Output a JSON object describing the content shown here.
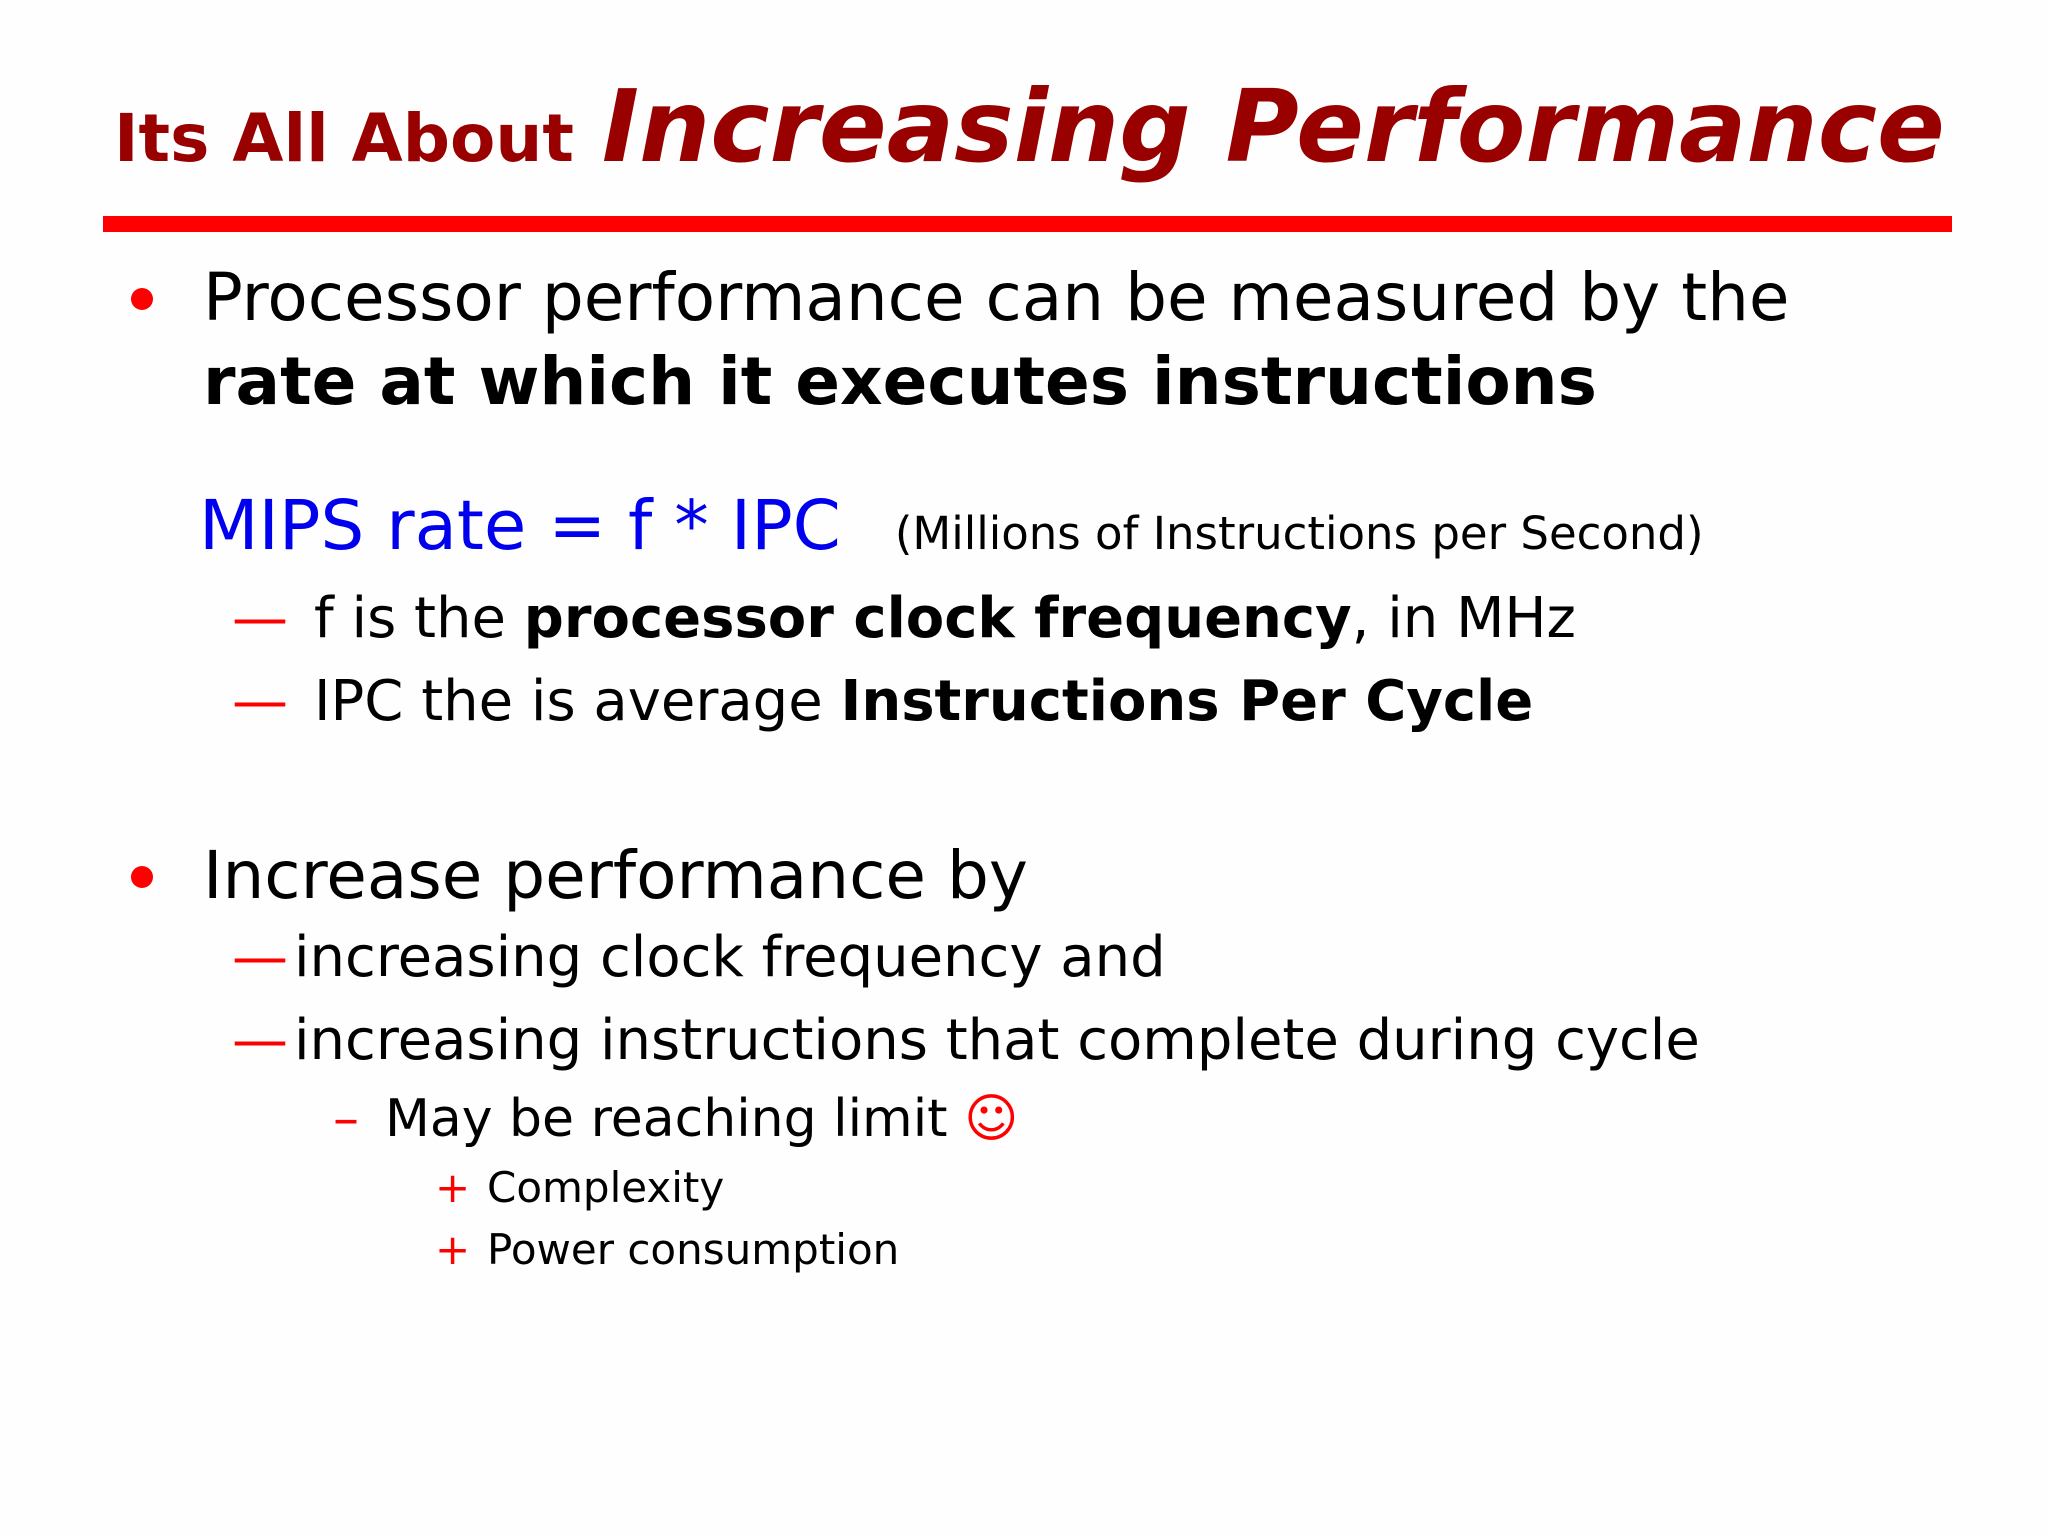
{
  "slide": {
    "title": {
      "prefix": "Its All About",
      "emphasis": "Increasing Performance"
    },
    "bullet1": {
      "text_plain": "Processor performance can be measured by the",
      "text_bold": "rate at which it executes instructions"
    },
    "formula": {
      "expr": "MIPS rate = f * IPC",
      "note": "(Millions of Instructions per Second)"
    },
    "sub1": [
      {
        "dash": "—",
        "pre": "f is the",
        "bold": "processor clock frequency",
        "post": ", in MHz"
      },
      {
        "dash": "—",
        "pre": "IPC the is average",
        "bold": "Instructions Per Cycle",
        "post": ""
      }
    ],
    "bullet2": {
      "text": "Increase performance by"
    },
    "sub2": [
      {
        "dash": "—",
        "text": "increasing clock frequency and"
      },
      {
        "dash": "—",
        "text": "increasing instructions that complete during cycle"
      }
    ],
    "sub3": {
      "dash": "–",
      "text": "May be reaching limit",
      "emoji": "☺"
    },
    "sub4": [
      {
        "mark": "+",
        "text": "Complexity"
      },
      {
        "mark": "+",
        "text": "Power consumption"
      }
    ],
    "colors": {
      "title": "#990000",
      "accent": "#ff0000",
      "formula": "#0000ee"
    }
  }
}
